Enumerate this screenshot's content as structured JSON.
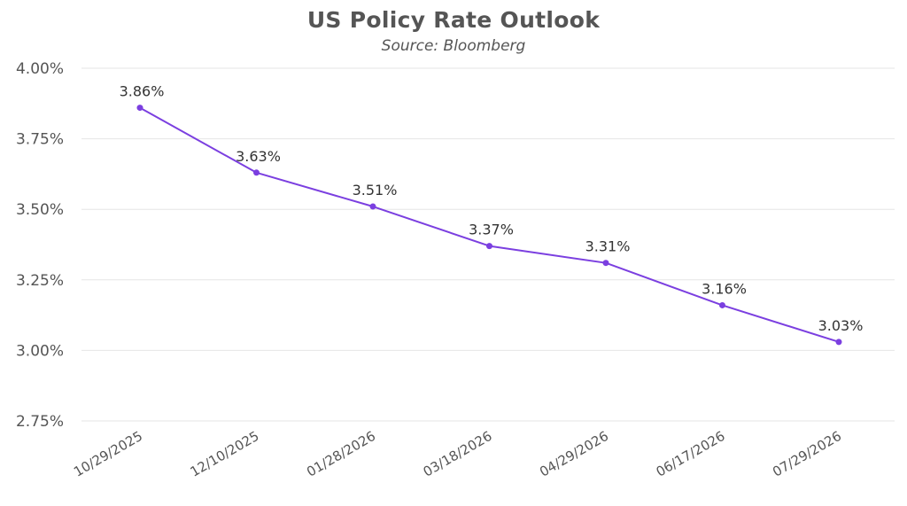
{
  "chart_data": {
    "type": "line",
    "title": "US Policy Rate Outlook",
    "subtitle": "Source: Bloomberg",
    "xlabel": "",
    "ylabel": "",
    "categories": [
      "10/29/2025",
      "12/10/2025",
      "01/28/2026",
      "03/18/2026",
      "04/29/2026",
      "06/17/2026",
      "07/29/2026"
    ],
    "series": [
      {
        "values": [
          3.86,
          3.63,
          3.51,
          3.37,
          3.31,
          3.16,
          3.03
        ],
        "labels": [
          "3.86%",
          "3.63%",
          "3.51%",
          "3.37%",
          "3.31%",
          "3.16%",
          "3.03%"
        ]
      }
    ],
    "ylim": [
      2.75,
      4.0
    ],
    "yticks": [
      2.75,
      3.0,
      3.25,
      3.5,
      3.75,
      4.0
    ],
    "ytick_labels": [
      "2.75%",
      "3.00%",
      "3.25%",
      "3.50%",
      "3.75%",
      "4.00%"
    ],
    "grid": true,
    "legend": "none",
    "colors": {
      "line": "#7B3FE0",
      "grid": "#e6e6e6",
      "text": "#555555"
    }
  }
}
